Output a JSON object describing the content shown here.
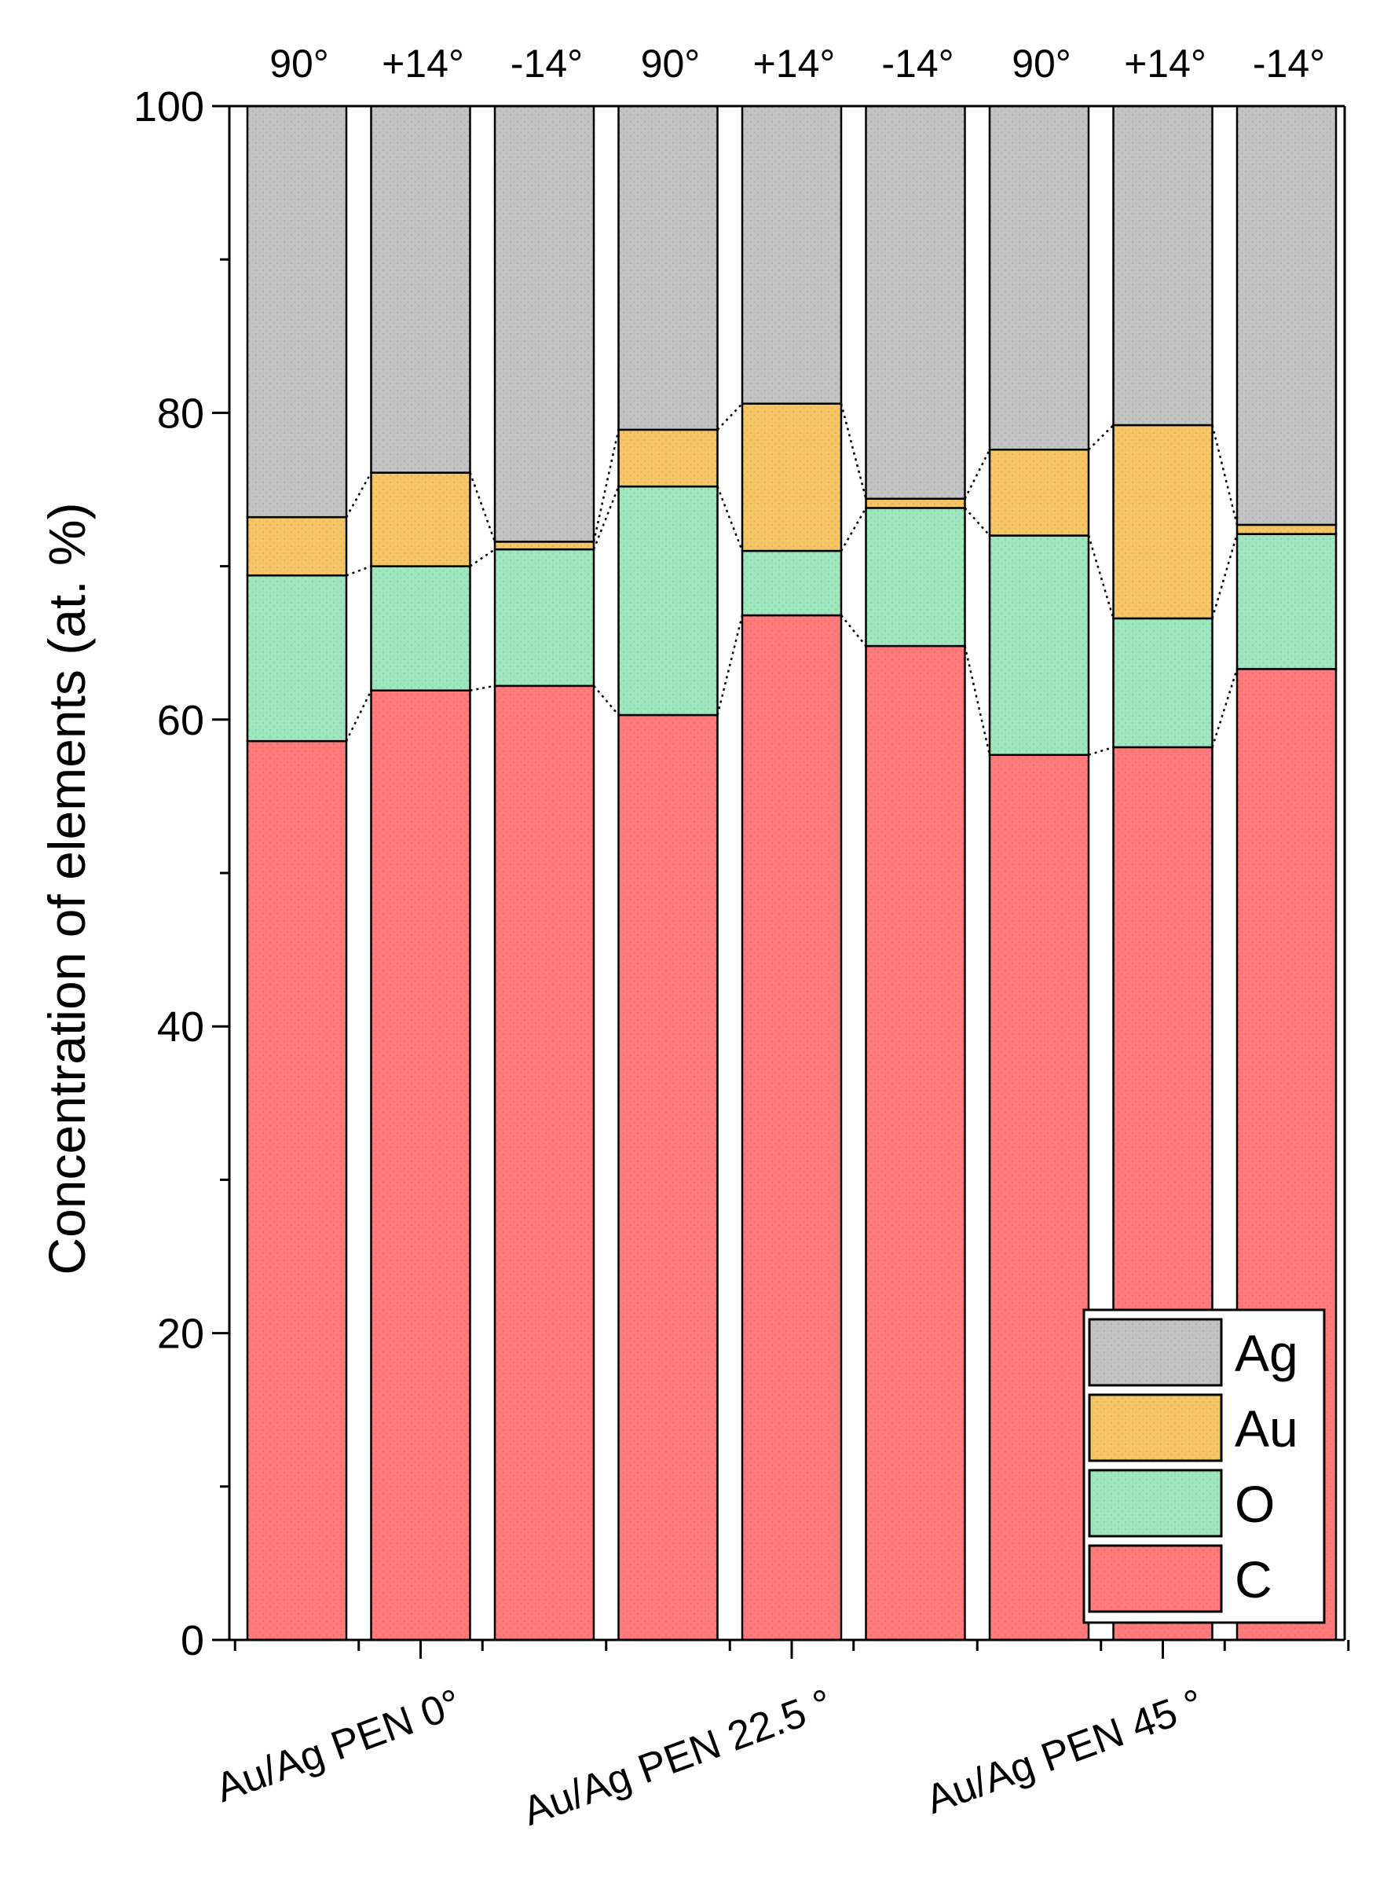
{
  "chart_data": {
    "type": "bar",
    "stacked": true,
    "title": "",
    "xlabel": "",
    "ylabel": "Concentration of elements (at. %)",
    "ylim": [
      0,
      100
    ],
    "yticks": [
      0,
      20,
      40,
      60,
      80,
      100
    ],
    "ytick_labels": [
      "0",
      "20",
      "40",
      "60",
      "80",
      "100"
    ],
    "categories": [
      "90°",
      "+14°",
      "-14°",
      "90°",
      "+14°",
      "-14°",
      "90°",
      "+14°",
      "-14°"
    ],
    "groups": [
      {
        "label": "Au/Ag PEN 0°",
        "bars": [
          0,
          1,
          2
        ]
      },
      {
        "label": "Au/Ag PEN 22.5 °",
        "bars": [
          3,
          4,
          5
        ]
      },
      {
        "label": "Au/Ag PEN 45 °",
        "bars": [
          6,
          7,
          8
        ]
      }
    ],
    "series": [
      {
        "name": "C",
        "color": "#ff7b7b",
        "values": [
          58.6,
          61.9,
          62.2,
          60.3,
          66.8,
          64.8,
          57.7,
          58.2,
          63.3
        ]
      },
      {
        "name": "O",
        "color": "#9ee6be",
        "values": [
          10.8,
          8.1,
          8.9,
          14.9,
          4.2,
          9.0,
          14.3,
          8.4,
          8.8
        ]
      },
      {
        "name": "Au",
        "color": "#f5c565",
        "values": [
          3.8,
          6.1,
          0.5,
          3.7,
          9.6,
          0.6,
          5.6,
          12.6,
          0.6
        ]
      },
      {
        "name": "Ag",
        "color": "#c3c3c3",
        "values": [
          26.8,
          23.9,
          28.4,
          21.1,
          19.4,
          25.6,
          22.4,
          20.8,
          27.3
        ]
      }
    ],
    "legend": {
      "position": "bottom-right",
      "order": [
        "Ag",
        "Au",
        "O",
        "C"
      ]
    },
    "grid": false
  }
}
